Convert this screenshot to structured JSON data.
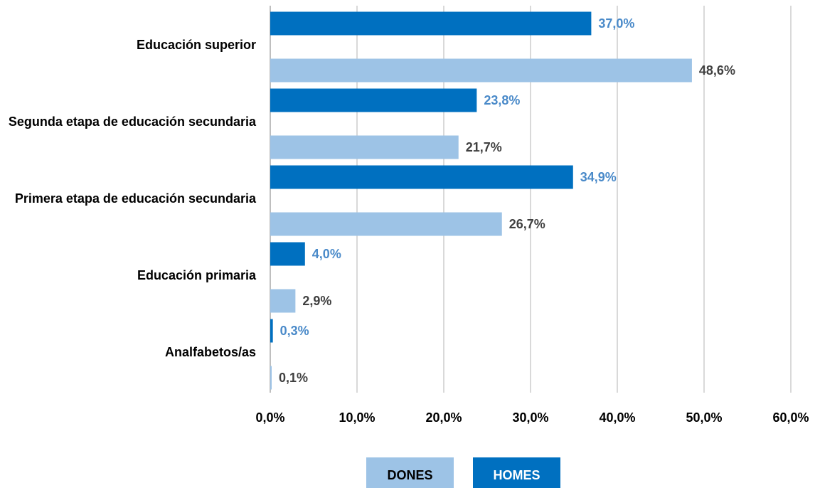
{
  "chart_data": {
    "type": "barh",
    "categories": [
      "Educación superior",
      "Segunda etapa de educación secundaria",
      "Primera etapa de educación secundaria",
      "Educación primaria",
      "Analfabetos/as"
    ],
    "series": [
      {
        "name": "DONES",
        "color": "#9dc3e6",
        "label_color": "#404040",
        "values": [
          48.6,
          21.7,
          26.7,
          2.9,
          0.1
        ],
        "value_labels": [
          "48,6%",
          "21,7%",
          "26,7%",
          "2,9%",
          "0,1%"
        ]
      },
      {
        "name": "HOMES",
        "color": "#0070c0",
        "label_color": "#4a8ac9",
        "values": [
          37.0,
          23.8,
          34.9,
          4.0,
          0.3
        ],
        "value_labels": [
          "37,0%",
          "23,8%",
          "34,9%",
          "4,0%",
          "0,3%"
        ]
      }
    ],
    "xlim": [
      0,
      60
    ],
    "xticks": [
      {
        "value": 0,
        "label": "0,0%"
      },
      {
        "value": 10,
        "label": "10,0%"
      },
      {
        "value": 20,
        "label": "20,0%"
      },
      {
        "value": 30,
        "label": "30,0%"
      },
      {
        "value": 40,
        "label": "40,0%"
      },
      {
        "value": 50,
        "label": "50,0%"
      },
      {
        "value": 60,
        "label": "60,0%"
      }
    ],
    "grid": true,
    "legend": "bottom"
  }
}
